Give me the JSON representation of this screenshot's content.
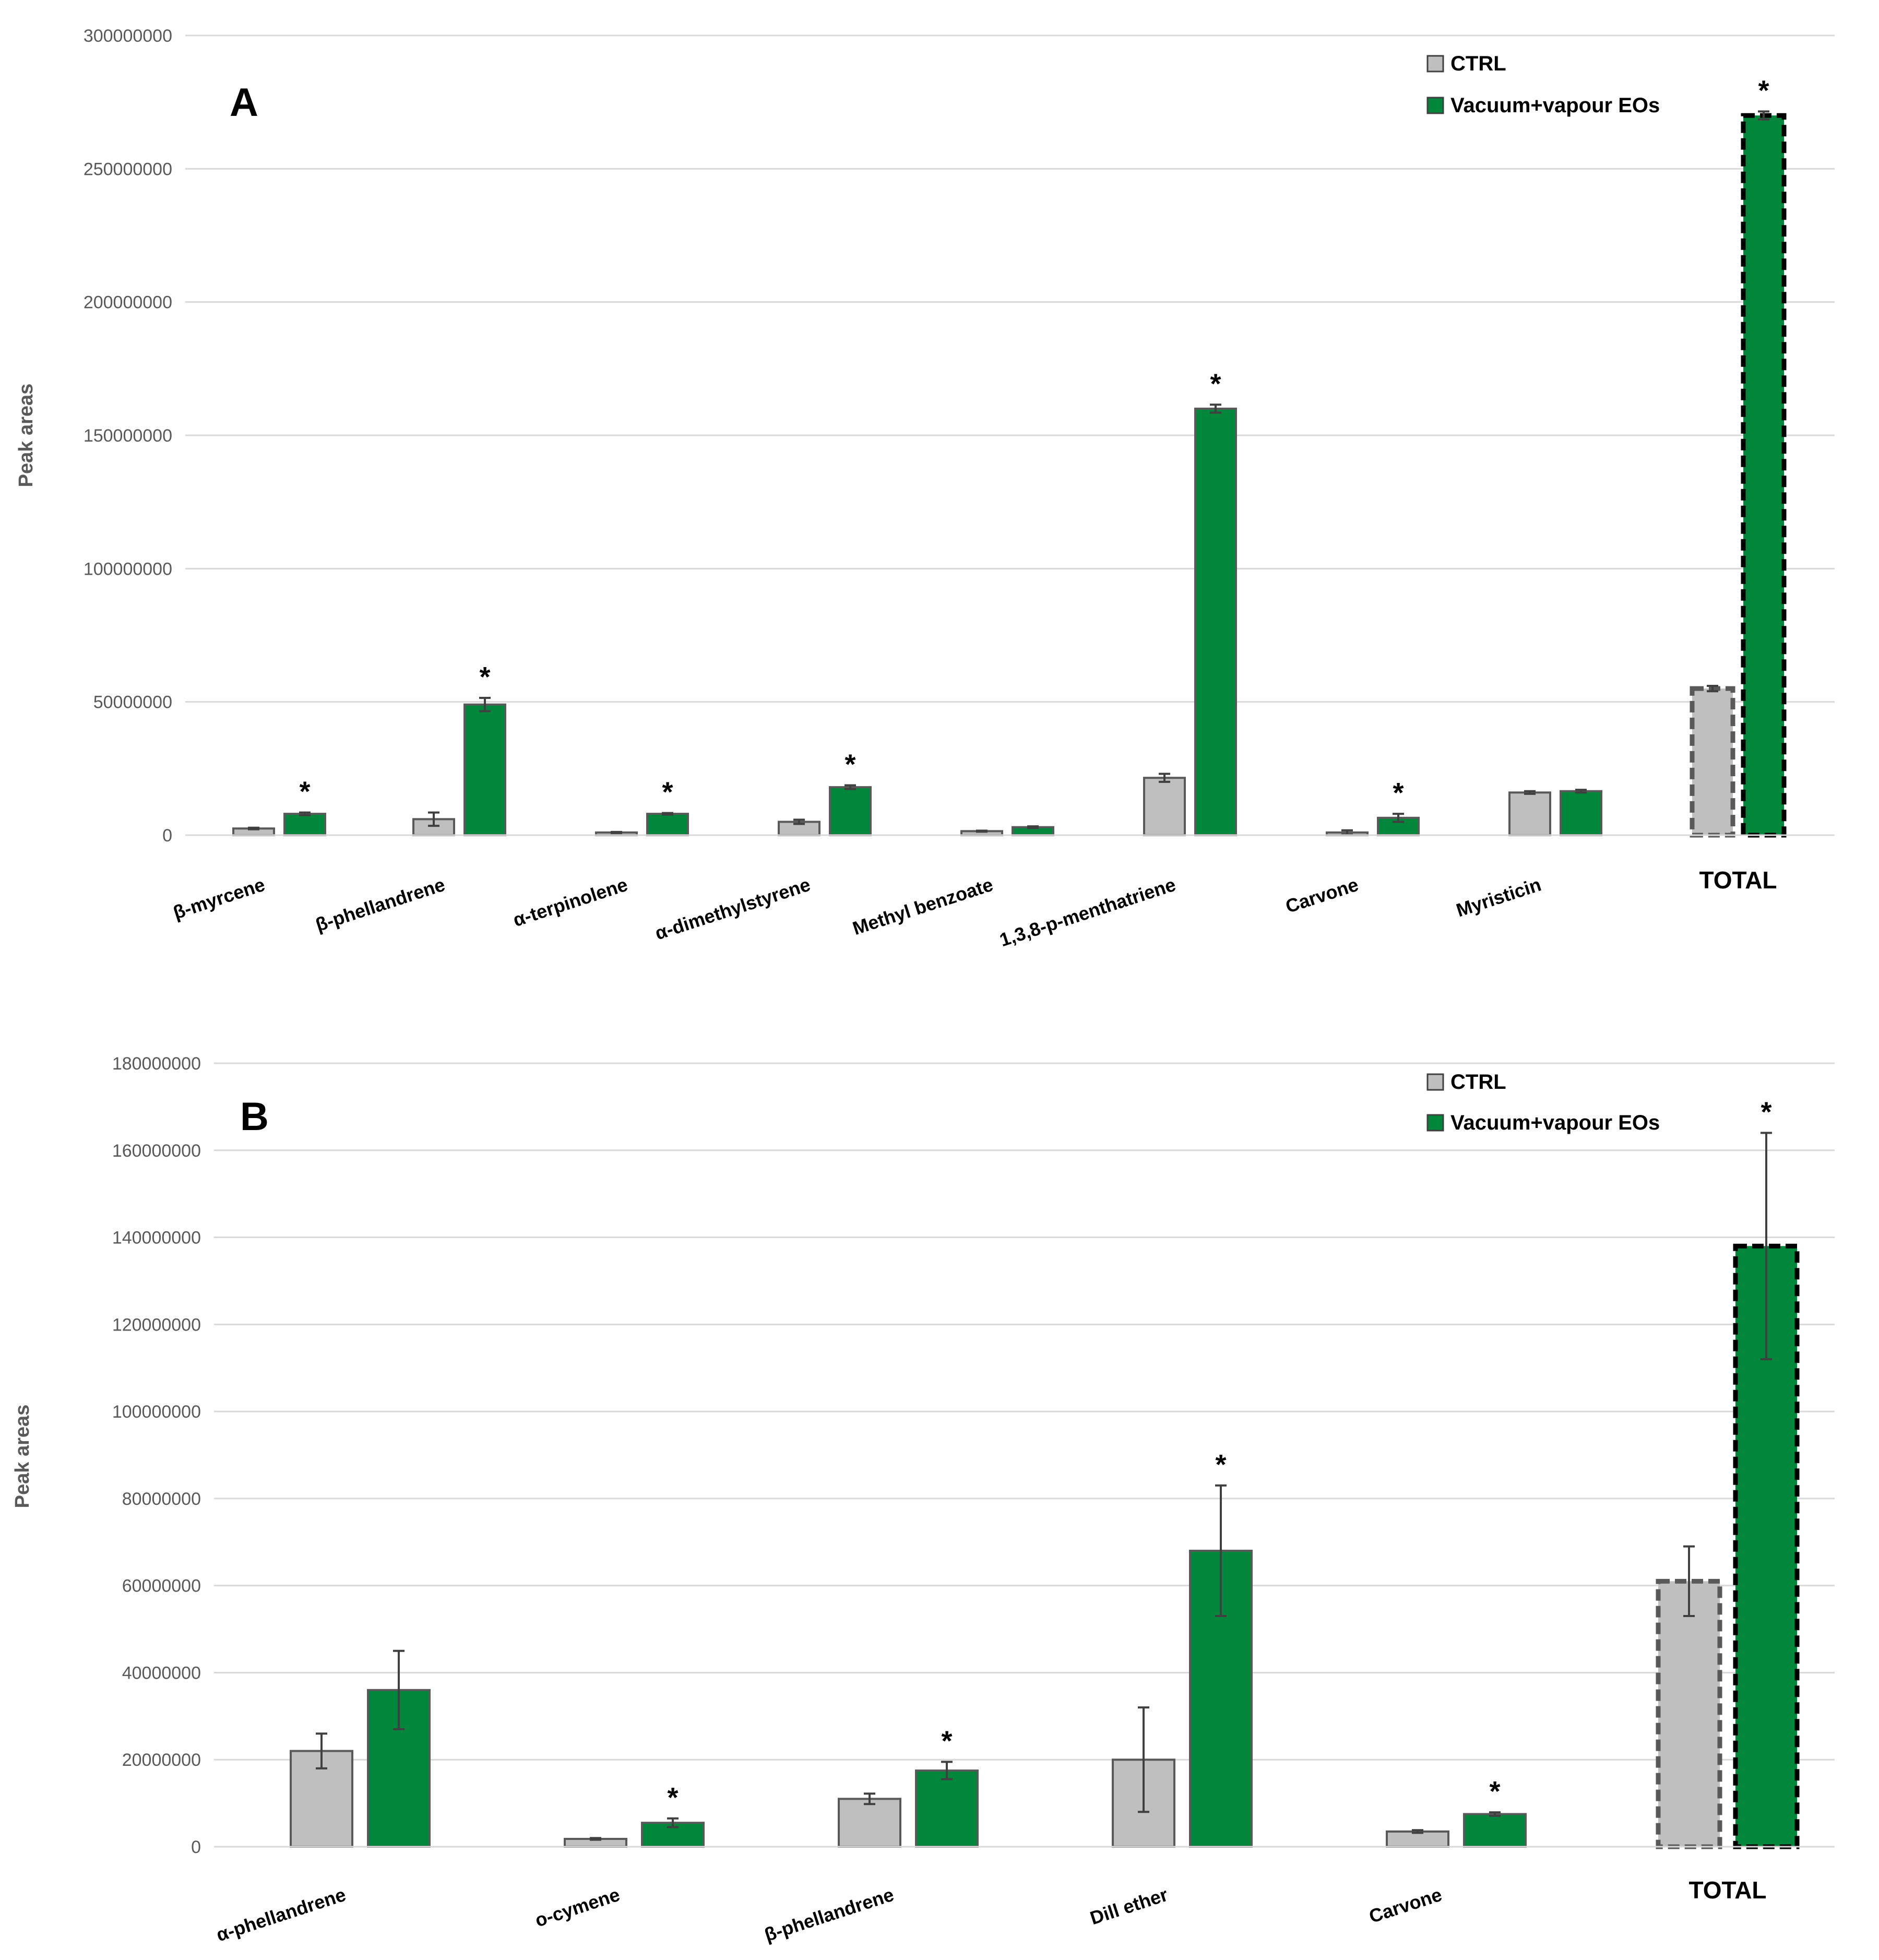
{
  "chart_data": [
    {
      "type": "bar",
      "panel": "A",
      "ylabel": "Peak areas",
      "ylim": [
        0,
        300000000
      ],
      "yticks": [
        "0",
        "50000000",
        "100000000",
        "150000000",
        "200000000",
        "250000000",
        "300000000"
      ],
      "categories": [
        "β-myrcene",
        "β-phellandrene",
        "α-terpinolene",
        "α-dimethylstyrene",
        "Methyl benzoate",
        "1,3,8-p-menthatriene",
        "Carvone",
        "Myristicin",
        "TOTAL"
      ],
      "series": [
        {
          "name": "CTRL",
          "color": "#bfbfbf",
          "values": [
            2500000,
            6000000,
            1000000,
            5000000,
            1500000,
            21500000,
            1000000,
            16000000,
            55000000
          ],
          "errors": [
            300000,
            2500000,
            200000,
            800000,
            200000,
            1500000,
            800000,
            500000,
            1000000
          ]
        },
        {
          "name": "Vacuum+vapour EOs",
          "color": "#00873c",
          "values": [
            8000000,
            49000000,
            8000000,
            18000000,
            3000000,
            160000000,
            6500000,
            16500000,
            270000000
          ],
          "errors": [
            500000,
            2500000,
            300000,
            700000,
            300000,
            1500000,
            1500000,
            500000,
            1500000
          ]
        }
      ],
      "significant": [
        "*",
        "*",
        "*",
        "*",
        "",
        "*",
        "*",
        "",
        "*"
      ],
      "legend": [
        "CTRL",
        "Vacuum+vapour EOs"
      ],
      "legend_position": "top-right",
      "grid": true
    },
    {
      "type": "bar",
      "panel": "B",
      "ylabel": "Peak areas",
      "ylim": [
        0,
        180000000
      ],
      "yticks": [
        "0",
        "20000000",
        "40000000",
        "60000000",
        "80000000",
        "100000000",
        "120000000",
        "140000000",
        "160000000",
        "180000000"
      ],
      "categories": [
        "α-phellandrene",
        "o-cymene",
        "β-phellandrene",
        "Dill ether",
        "Carvone",
        "TOTAL"
      ],
      "series": [
        {
          "name": "CTRL",
          "color": "#bfbfbf",
          "values": [
            22000000,
            1800000,
            11000000,
            20000000,
            3500000,
            61000000
          ],
          "errors": [
            4000000,
            200000,
            1200000,
            12000000,
            300000,
            8000000
          ]
        },
        {
          "name": "Vacuum+vapour EOs",
          "color": "#00873c",
          "values": [
            36000000,
            5500000,
            17500000,
            68000000,
            7500000,
            138000000
          ],
          "errors": [
            9000000,
            1000000,
            2000000,
            15000000,
            400000,
            26000000
          ]
        }
      ],
      "significant": [
        "",
        "*",
        "*",
        "*",
        "*",
        "*"
      ],
      "legend": [
        "CTRL",
        "Vacuum+vapour EOs"
      ],
      "legend_position": "top-right",
      "grid": true
    }
  ]
}
